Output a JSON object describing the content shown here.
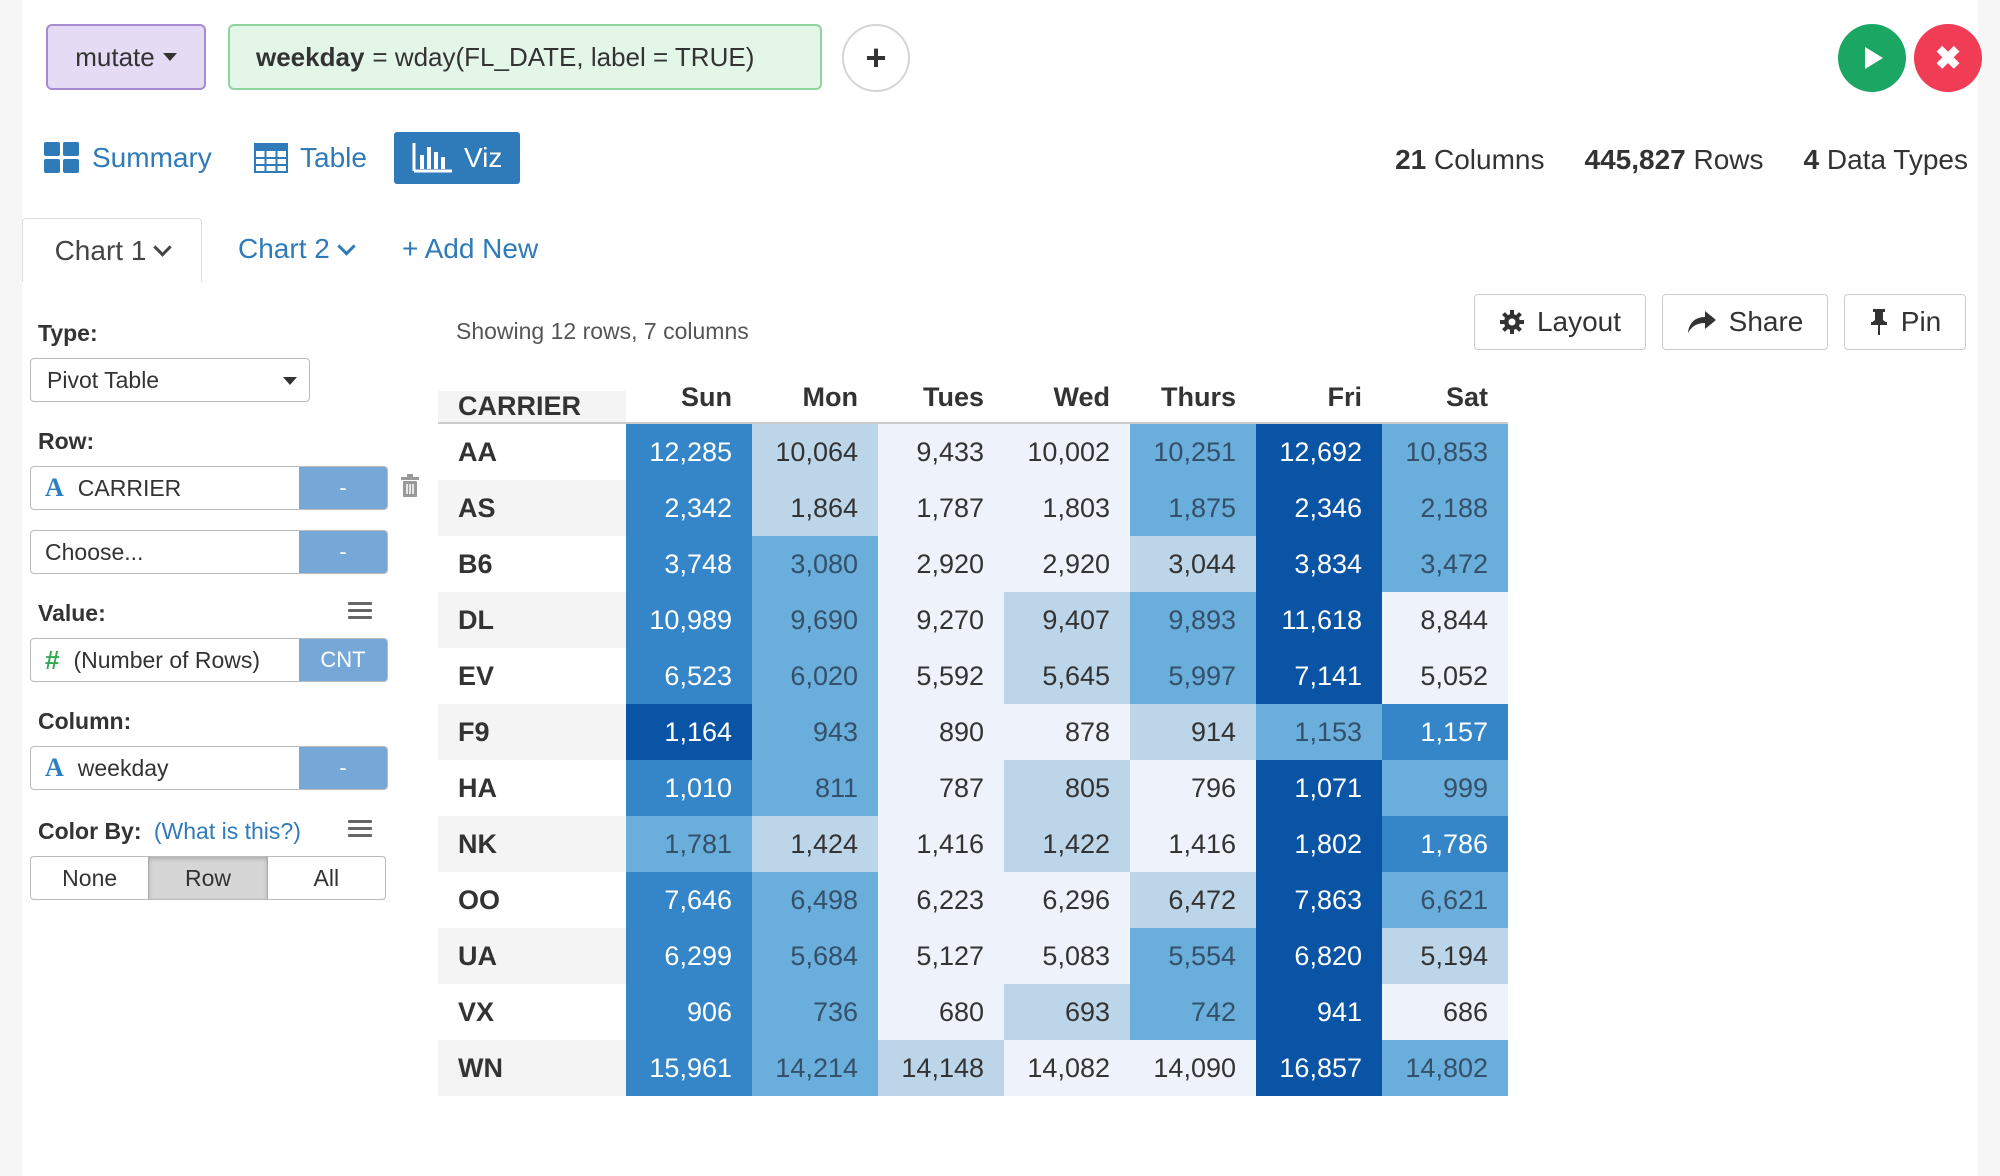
{
  "command": {
    "verb": "mutate",
    "expr_target": "weekday",
    "expr_body": "= wday(FL_DATE, label = TRUE)",
    "add_icon": "plus-icon",
    "run_icon": "play-icon",
    "cancel_icon": "close-icon"
  },
  "views": {
    "summary": "Summary",
    "table": "Table",
    "viz": "Viz"
  },
  "stats": {
    "columns_n": "21",
    "columns_label": "Columns",
    "rows_n": "445,827",
    "rows_label": "Rows",
    "types_n": "4",
    "types_label": "Data Types"
  },
  "tabs": {
    "chart1": "Chart 1",
    "chart2": "Chart 2",
    "add_new": "+ Add New"
  },
  "sidebar": {
    "type_label": "Type:",
    "type_value": "Pivot Table",
    "row_label": "Row:",
    "row1_value": "CARRIER",
    "row1_side": "-",
    "row2_value": "Choose...",
    "row2_side": "-",
    "value_label": "Value:",
    "value_value": "(Number of Rows)",
    "value_side": "CNT",
    "column_label": "Column:",
    "column_value": "weekday",
    "column_side": "-",
    "colorby_label": "Color By:",
    "colorby_help": "(What is this?)",
    "colorby_options": [
      "None",
      "Row",
      "All"
    ],
    "colorby_selected": "Row"
  },
  "toolbar": {
    "showing": "Showing 12 rows, 7 columns",
    "layout": "Layout",
    "share": "Share",
    "pin": "Pin"
  },
  "colors": {
    "accent": "#2f7ab9",
    "level0": "#eef3fb",
    "level1": "#bcd5e8",
    "level2": "#6aaedb",
    "level3": "#3486c9",
    "level4": "#0a54a5"
  },
  "pivot": {
    "row_header": "CARRIER",
    "columns": [
      "Sun",
      "Mon",
      "Tues",
      "Wed",
      "Thurs",
      "Fri",
      "Sat"
    ],
    "rows": [
      {
        "carrier": "AA",
        "values": [
          "12,285",
          "10,064",
          "9,433",
          "10,002",
          "10,251",
          "12,692",
          "10,853"
        ],
        "levels": [
          3,
          1,
          0,
          0,
          2,
          4,
          2
        ]
      },
      {
        "carrier": "AS",
        "values": [
          "2,342",
          "1,864",
          "1,787",
          "1,803",
          "1,875",
          "2,346",
          "2,188"
        ],
        "levels": [
          3,
          1,
          0,
          0,
          2,
          4,
          2
        ]
      },
      {
        "carrier": "B6",
        "values": [
          "3,748",
          "3,080",
          "2,920",
          "2,920",
          "3,044",
          "3,834",
          "3,472"
        ],
        "levels": [
          3,
          2,
          0,
          0,
          1,
          4,
          2
        ]
      },
      {
        "carrier": "DL",
        "values": [
          "10,989",
          "9,690",
          "9,270",
          "9,407",
          "9,893",
          "11,618",
          "8,844"
        ],
        "levels": [
          3,
          2,
          0,
          1,
          2,
          4,
          0
        ]
      },
      {
        "carrier": "EV",
        "values": [
          "6,523",
          "6,020",
          "5,592",
          "5,645",
          "5,997",
          "7,141",
          "5,052"
        ],
        "levels": [
          3,
          2,
          0,
          1,
          2,
          4,
          0
        ]
      },
      {
        "carrier": "F9",
        "values": [
          "1,164",
          "943",
          "890",
          "878",
          "914",
          "1,153",
          "1,157"
        ],
        "levels": [
          4,
          2,
          0,
          0,
          1,
          2,
          3
        ]
      },
      {
        "carrier": "HA",
        "values": [
          "1,010",
          "811",
          "787",
          "805",
          "796",
          "1,071",
          "999"
        ],
        "levels": [
          3,
          2,
          0,
          1,
          0,
          4,
          2
        ]
      },
      {
        "carrier": "NK",
        "values": [
          "1,781",
          "1,424",
          "1,416",
          "1,422",
          "1,416",
          "1,802",
          "1,786"
        ],
        "levels": [
          2,
          1,
          0,
          1,
          0,
          4,
          3
        ]
      },
      {
        "carrier": "OO",
        "values": [
          "7,646",
          "6,498",
          "6,223",
          "6,296",
          "6,472",
          "7,863",
          "6,621"
        ],
        "levels": [
          3,
          2,
          0,
          0,
          1,
          4,
          2
        ]
      },
      {
        "carrier": "UA",
        "values": [
          "6,299",
          "5,684",
          "5,127",
          "5,083",
          "5,554",
          "6,820",
          "5,194"
        ],
        "levels": [
          3,
          2,
          0,
          0,
          2,
          4,
          1
        ]
      },
      {
        "carrier": "VX",
        "values": [
          "906",
          "736",
          "680",
          "693",
          "742",
          "941",
          "686"
        ],
        "levels": [
          3,
          2,
          0,
          1,
          2,
          4,
          0
        ]
      },
      {
        "carrier": "WN",
        "values": [
          "15,961",
          "14,214",
          "14,148",
          "14,082",
          "14,090",
          "16,857",
          "14,802"
        ],
        "levels": [
          3,
          2,
          1,
          0,
          0,
          4,
          2
        ]
      }
    ]
  }
}
